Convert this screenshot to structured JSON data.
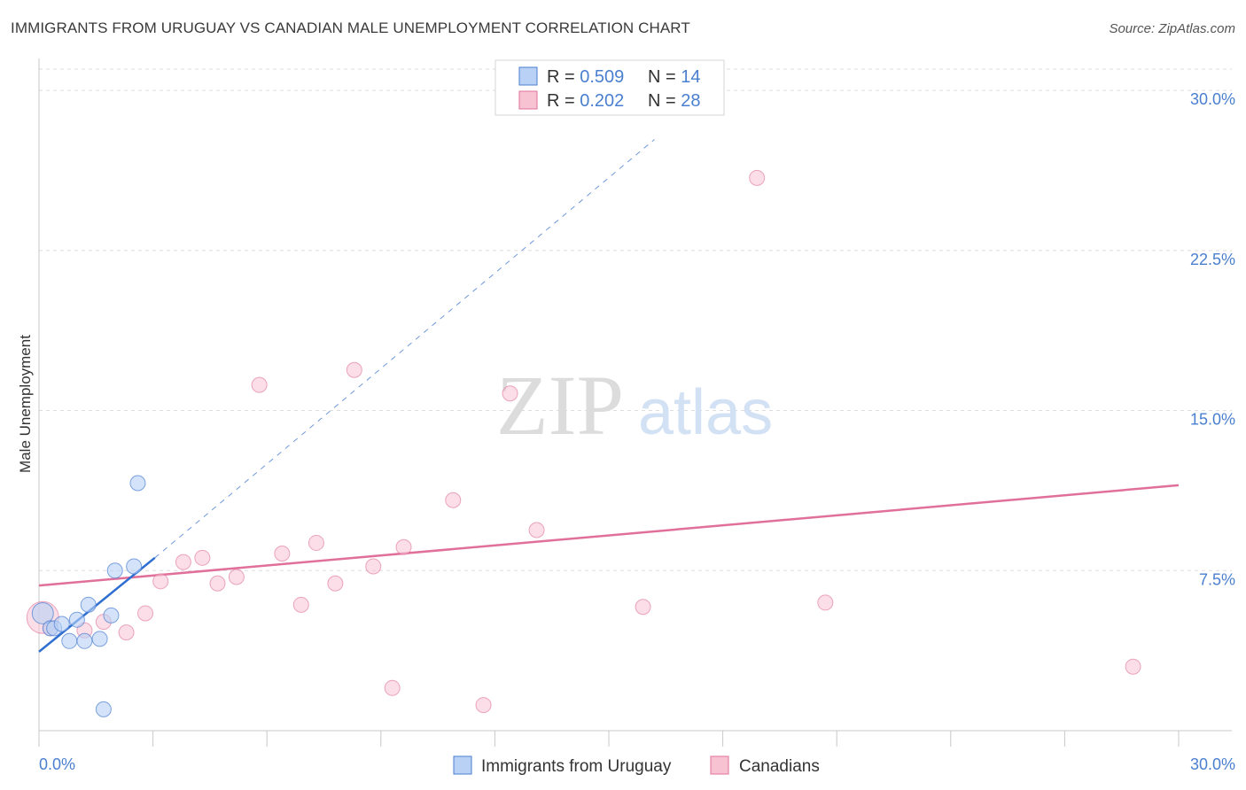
{
  "title": "IMMIGRANTS FROM URUGUAY VS CANADIAN MALE UNEMPLOYMENT CORRELATION CHART",
  "source": "Source: ZipAtlas.com",
  "watermark": {
    "zip": "ZIP",
    "atlas": "atlas"
  },
  "colors": {
    "blue": "#4a7fd0",
    "blue_fill": "#b8d1f5",
    "blue_line": "#2f6fd1",
    "pink": "#e0709a",
    "pink_fill": "#f7c3d3",
    "grid": "#dddddd"
  },
  "legend": {
    "rows": [
      {
        "r_label": "R = ",
        "r_value": "0.509",
        "n_label": "N = ",
        "n_value": "14"
      },
      {
        "r_label": "R = ",
        "r_value": "0.202",
        "n_label": "N = ",
        "n_value": "28"
      }
    ]
  },
  "chart_data": {
    "type": "scatter",
    "title": "IMMIGRANTS FROM URUGUAY VS CANADIAN MALE UNEMPLOYMENT CORRELATION CHART",
    "xlabel": "",
    "ylabel": "Male Unemployment",
    "xlim": [
      0,
      30
    ],
    "ylim": [
      0,
      31
    ],
    "x_tick_labels": [
      "0.0%",
      "30.0%"
    ],
    "y_ticks": [
      7.5,
      15.0,
      22.5,
      30.0
    ],
    "y_tick_labels": [
      "7.5%",
      "15.0%",
      "22.5%",
      "30.0%"
    ],
    "grid": true,
    "legend_position": "top-center",
    "series": [
      {
        "name": "Immigrants from Uruguay",
        "color": "#4a7fd0",
        "points": [
          [
            0.1,
            5.5
          ],
          [
            0.3,
            4.8
          ],
          [
            0.4,
            4.8
          ],
          [
            0.6,
            5.0
          ],
          [
            0.8,
            4.2
          ],
          [
            1.0,
            5.2
          ],
          [
            1.2,
            4.2
          ],
          [
            1.3,
            5.9
          ],
          [
            1.6,
            4.3
          ],
          [
            1.7,
            1.0
          ],
          [
            1.9,
            5.4
          ],
          [
            2.0,
            7.5
          ],
          [
            2.5,
            7.7
          ],
          [
            2.6,
            11.6
          ]
        ],
        "trend": {
          "x": [
            0.0,
            3.05
          ],
          "y": [
            3.7,
            8.1
          ],
          "extended_x": [
            3.05,
            16.2
          ],
          "extended_y": [
            8.1,
            27.7
          ]
        }
      },
      {
        "name": "Canadians",
        "color": "#e0709a",
        "points": [
          [
            0.1,
            5.3
          ],
          [
            0.3,
            4.8
          ],
          [
            1.2,
            4.7
          ],
          [
            1.7,
            5.1
          ],
          [
            2.3,
            4.6
          ],
          [
            2.8,
            5.5
          ],
          [
            3.2,
            7.0
          ],
          [
            3.8,
            7.9
          ],
          [
            4.3,
            8.1
          ],
          [
            4.7,
            6.9
          ],
          [
            5.2,
            7.2
          ],
          [
            5.8,
            16.2
          ],
          [
            6.4,
            8.3
          ],
          [
            6.9,
            5.9
          ],
          [
            7.3,
            8.8
          ],
          [
            7.8,
            6.9
          ],
          [
            8.3,
            16.9
          ],
          [
            8.8,
            7.7
          ],
          [
            9.3,
            2.0
          ],
          [
            9.6,
            8.6
          ],
          [
            10.9,
            10.8
          ],
          [
            11.7,
            1.2
          ],
          [
            12.4,
            15.8
          ],
          [
            13.1,
            9.4
          ],
          [
            15.9,
            5.8
          ],
          [
            18.9,
            25.9
          ],
          [
            20.7,
            6.0
          ],
          [
            28.8,
            3.0
          ]
        ],
        "trend": {
          "x": [
            0.0,
            30.0
          ],
          "y": [
            6.8,
            11.5
          ]
        }
      }
    ]
  },
  "bottom_legend": [
    {
      "label": "Immigrants from Uruguay"
    },
    {
      "label": "Canadians"
    }
  ]
}
